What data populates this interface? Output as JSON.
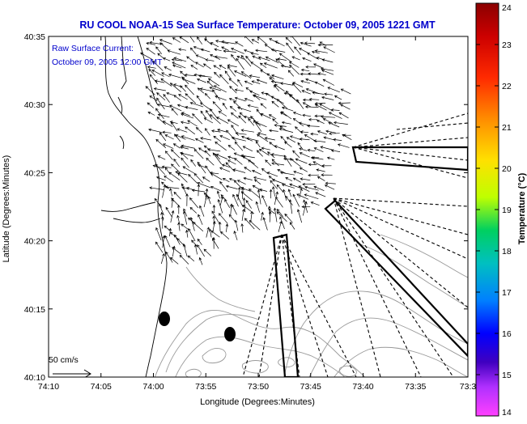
{
  "title": "RU COOL  NOAA-15  Sea Surface Temperature:  October 09, 2005 1221 GMT",
  "annotation": {
    "line1": "Raw Surface Current:",
    "line2": "October 09, 2005 12:00 GMT",
    "scale_label": "50 cm/s"
  },
  "axes": {
    "xlabel": "Longitude (Degrees:Minutes)",
    "ylabel": "Latitude (Degrees:Minutes)",
    "x_ticks": [
      "74:10",
      "74:05",
      "74:00",
      "73:55",
      "73:50",
      "73:45",
      "73:40",
      "73:35",
      "73:3"
    ],
    "y_ticks": [
      "40:35",
      "40:30",
      "40:25",
      "40:20",
      "40:15",
      "40:10"
    ]
  },
  "colorbar": {
    "label": "Temperature (°C)",
    "min": 14,
    "max": 24,
    "ticks": [
      "24",
      "23",
      "22",
      "21",
      "20",
      "19",
      "18",
      "17",
      "16",
      "15",
      "14"
    ]
  },
  "colors": {
    "title": "#0000cc",
    "annotation": "#0000cc",
    "frame": "#000000",
    "land_outline": "#000000",
    "bathymetry": "#999999",
    "vectors": "#000000"
  },
  "map_features": {
    "surface_current_vectors": true,
    "hf_radar_beam_patterns": true,
    "bathymetry_contours": true,
    "site_markers": [
      "marker-a",
      "marker-b"
    ]
  }
}
